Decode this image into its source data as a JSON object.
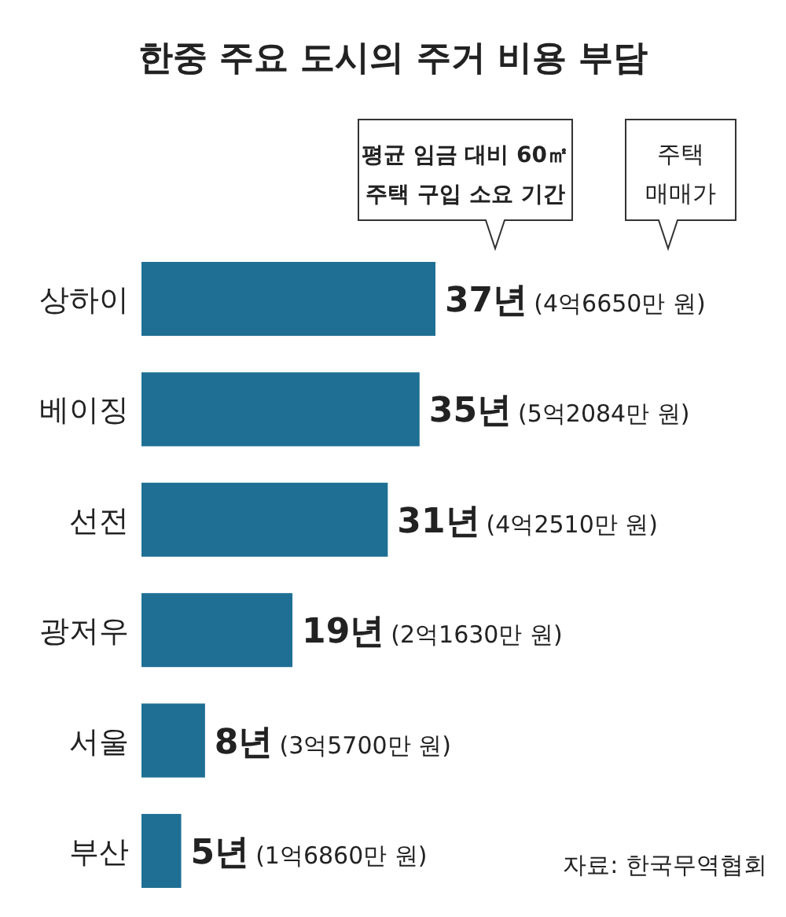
{
  "chart_data": {
    "type": "bar",
    "orientation": "horizontal",
    "title": "한중 주요 도시의 주거 비용 부담",
    "categories": [
      "상하이",
      "베이징",
      "선전",
      "광저우",
      "서울",
      "부산"
    ],
    "values": [
      37,
      35,
      31,
      19,
      8,
      5
    ],
    "color": "#1f6f94",
    "value_labels": [
      "37년",
      "35년",
      "31년",
      "19년",
      "8년",
      "5년"
    ],
    "annotations": [
      "평균 임금 대비 60㎡ 주택 구입 소요 기간",
      "주택 매매가",
      "(4억6650만 원)",
      "(5억2084만 원)",
      "(4억2510만 원)",
      "(2억1630만 원)",
      "(3억5700만 원)",
      "(1억6860만 원)",
      "자료: 한국무역협회"
    ]
  }
}
